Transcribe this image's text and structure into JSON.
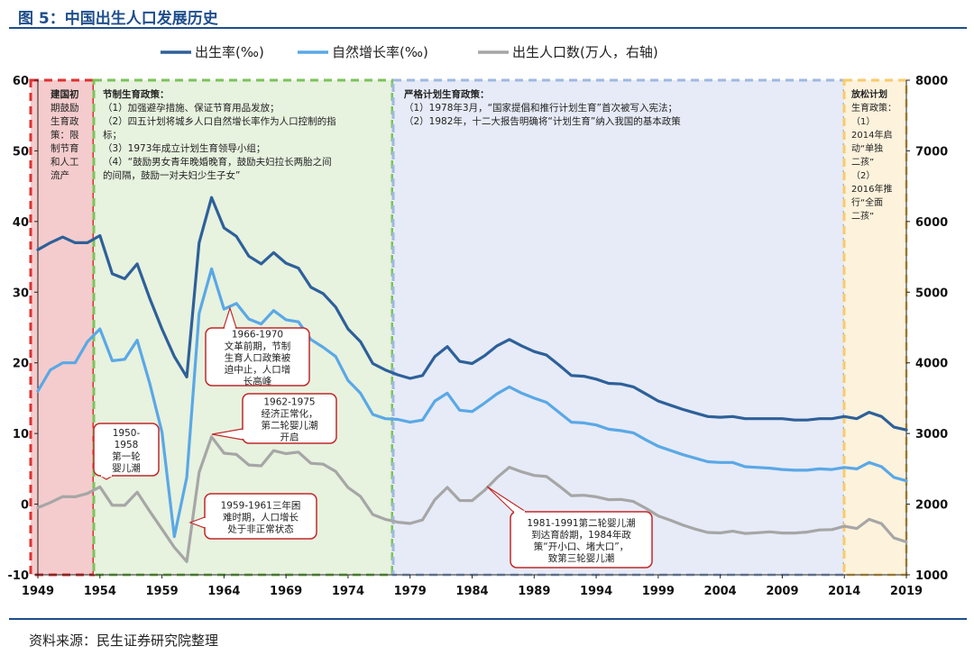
{
  "figure": {
    "title": "图 5：中国出生人口发展历史",
    "source": "资料来源：民生证券研究院整理"
  },
  "chart_data": {
    "type": "line",
    "x_ticks": [
      1949,
      1954,
      1959,
      1964,
      1969,
      1974,
      1979,
      1984,
      1989,
      1994,
      1999,
      2004,
      2009,
      2014,
      2019
    ],
    "y_left_ticks": [
      -10,
      0,
      10,
      20,
      30,
      40,
      50,
      60
    ],
    "y_right_ticks": [
      1000,
      2000,
      3000,
      4000,
      5000,
      6000,
      7000,
      8000
    ],
    "ylim_left": [
      -10,
      60
    ],
    "ylim_right": [
      1000,
      8000
    ],
    "xlim": [
      1949,
      2019
    ],
    "grid": false,
    "legend_position": "top",
    "series": [
      {
        "name": "出生率(‰)",
        "axis": "left",
        "color": "#2e6099",
        "x": [
          1949,
          1950,
          1951,
          1952,
          1953,
          1954,
          1955,
          1956,
          1957,
          1958,
          1959,
          1960,
          1961,
          1962,
          1963,
          1964,
          1965,
          1966,
          1967,
          1968,
          1969,
          1970,
          1971,
          1972,
          1973,
          1974,
          1975,
          1976,
          1977,
          1978,
          1979,
          1980,
          1981,
          1982,
          1983,
          1984,
          1985,
          1986,
          1987,
          1988,
          1989,
          1990,
          1991,
          1992,
          1993,
          1994,
          1995,
          1996,
          1997,
          1998,
          1999,
          2000,
          2001,
          2002,
          2003,
          2004,
          2005,
          2006,
          2007,
          2008,
          2009,
          2010,
          2011,
          2012,
          2013,
          2014,
          2015,
          2016,
          2017,
          2018,
          2019
        ],
        "values": [
          36.0,
          37.0,
          37.8,
          37.0,
          37.0,
          38.0,
          32.6,
          31.9,
          34.0,
          29.2,
          24.8,
          20.9,
          18.0,
          37.0,
          43.4,
          39.1,
          37.9,
          35.1,
          34.0,
          35.6,
          34.1,
          33.4,
          30.7,
          29.8,
          27.9,
          24.8,
          23.0,
          19.9,
          19.0,
          18.3,
          17.8,
          18.2,
          20.9,
          22.3,
          20.2,
          19.9,
          21.0,
          22.4,
          23.3,
          22.4,
          21.6,
          21.1,
          19.7,
          18.2,
          18.1,
          17.7,
          17.1,
          17.0,
          16.6,
          15.6,
          14.6,
          14.0,
          13.4,
          12.9,
          12.4,
          12.3,
          12.4,
          12.1,
          12.1,
          12.1,
          12.1,
          11.9,
          11.9,
          12.1,
          12.1,
          12.4,
          12.1,
          13.0,
          12.4,
          10.9,
          10.5
        ]
      },
      {
        "name": "自然增长率(‰)",
        "axis": "left",
        "color": "#5aa8e6",
        "x": [
          1949,
          1950,
          1951,
          1952,
          1953,
          1954,
          1955,
          1956,
          1957,
          1958,
          1959,
          1960,
          1961,
          1962,
          1963,
          1964,
          1965,
          1966,
          1967,
          1968,
          1969,
          1970,
          1971,
          1972,
          1973,
          1974,
          1975,
          1976,
          1977,
          1978,
          1979,
          1980,
          1981,
          1982,
          1983,
          1984,
          1985,
          1986,
          1987,
          1988,
          1989,
          1990,
          1991,
          1992,
          1993,
          1994,
          1995,
          1996,
          1997,
          1998,
          1999,
          2000,
          2001,
          2002,
          2003,
          2004,
          2005,
          2006,
          2007,
          2008,
          2009,
          2010,
          2011,
          2012,
          2013,
          2014,
          2015,
          2016,
          2017,
          2018,
          2019
        ],
        "values": [
          16.0,
          19.0,
          20.0,
          20.0,
          23.0,
          24.8,
          20.3,
          20.5,
          23.2,
          17.2,
          10.2,
          -4.6,
          3.8,
          27.0,
          33.3,
          27.6,
          28.4,
          26.2,
          25.5,
          27.4,
          26.1,
          25.8,
          23.3,
          22.2,
          20.9,
          17.5,
          15.7,
          12.7,
          12.1,
          12.0,
          11.6,
          11.9,
          14.6,
          15.7,
          13.3,
          13.1,
          14.3,
          15.6,
          16.6,
          15.7,
          15.0,
          14.4,
          13.0,
          11.6,
          11.5,
          11.2,
          10.6,
          10.4,
          10.1,
          9.1,
          8.2,
          7.6,
          7.0,
          6.5,
          6.0,
          5.9,
          5.9,
          5.3,
          5.2,
          5.1,
          4.9,
          4.8,
          4.8,
          5.0,
          4.9,
          5.2,
          5.0,
          5.9,
          5.3,
          3.8,
          3.3
        ]
      },
      {
        "name": "出生人口数(万人，右轴)",
        "axis": "right",
        "color": "#a6a6a6",
        "x": [
          1949,
          1950,
          1951,
          1952,
          1953,
          1954,
          1955,
          1956,
          1957,
          1958,
          1959,
          1960,
          1961,
          1962,
          1963,
          1964,
          1965,
          1966,
          1967,
          1968,
          1969,
          1970,
          1971,
          1972,
          1973,
          1974,
          1975,
          1976,
          1977,
          1978,
          1979,
          1980,
          1981,
          1982,
          1983,
          1984,
          1985,
          1986,
          1987,
          1988,
          1989,
          1990,
          1991,
          1992,
          1993,
          1994,
          1995,
          1996,
          1997,
          1998,
          1999,
          2000,
          2001,
          2002,
          2003,
          2004,
          2005,
          2006,
          2007,
          2008,
          2009,
          2010,
          2011,
          2012,
          2013,
          2014,
          2015,
          2016,
          2017,
          2018,
          2019
        ],
        "values": [
          1950,
          2023,
          2107,
          2104,
          2151,
          2245,
          1984,
          1983,
          2169,
          1904,
          1647,
          1389,
          1187,
          2451,
          2954,
          2721,
          2704,
          2554,
          2543,
          2757,
          2715,
          2736,
          2578,
          2566,
          2463,
          2235,
          2109,
          1853,
          1786,
          1745,
          1727,
          1776,
          2064,
          2237,
          2052,
          2050,
          2196,
          2374,
          2522,
          2457,
          2407,
          2391,
          2258,
          2119,
          2126,
          2104,
          2063,
          2067,
          2038,
          1942,
          1834,
          1771,
          1702,
          1647,
          1599,
          1593,
          1617,
          1585,
          1595,
          1608,
          1591,
          1592,
          1604,
          1635,
          1640,
          1687,
          1655,
          1786,
          1723,
          1523,
          1465
        ]
      }
    ],
    "policy_periods": [
      {
        "color": "#e03030",
        "fill": "#f4cccd",
        "text": [
          "建国初",
          "期鼓励",
          "生育政",
          "策：限",
          "制节育",
          "和人工",
          "流产"
        ]
      },
      {
        "color": "#7cc35a",
        "fill": "#e7f2df",
        "text": [
          "节制生育政策：",
          "（1）加强避孕措施、保证节育用品发放；",
          "（2）四五计划将城乡人口自然增长率作为人口控制的指",
          "标；",
          "（3）1973年成立计划生育领导小组；",
          "（4）“鼓励男女青年晚婚晚育，鼓励夫妇拉长两胎之间",
          "的间隔，鼓励一对夫妇少生子女”"
        ]
      },
      {
        "color": "#9fb9e0",
        "fill": "#e6ebf7",
        "text": [
          "严格计划生育政策：",
          "（1）1978年3月，“国家提倡和推行计划生育”首次被写入宪法；",
          "（2）1982年，十二大报告明确将“计划生育”纳入我国的基本政策"
        ]
      },
      {
        "color": "#f7cb6c",
        "fill": "#fdf2dc",
        "text": [
          "放松计划",
          "生育政策：",
          "（1）",
          "2014年启",
          "动“单独",
          "二孩”",
          "（2）",
          "2016年推",
          "行“全面",
          "二孩”"
        ]
      }
    ],
    "annotations": [
      {
        "text": [
          "1966-1970",
          "文革前期，节制",
          "生育人口政策被",
          "迫中止，人口增",
          "长高峰"
        ]
      },
      {
        "text": [
          "1962-1975",
          "经济正常化，",
          "第二轮婴儿潮",
          "开启"
        ]
      },
      {
        "text": [
          "1950-",
          "1958",
          "第一轮",
          "婴儿潮"
        ]
      },
      {
        "text": [
          "1959-1961三年困",
          "难时期，人口增长",
          "处于非正常状态"
        ]
      },
      {
        "text": [
          "1981-1991第二轮婴儿潮",
          "到达育龄期，1984年政",
          "策“开小口、堵大口”，",
          "致第三轮婴儿潮"
        ]
      }
    ]
  }
}
